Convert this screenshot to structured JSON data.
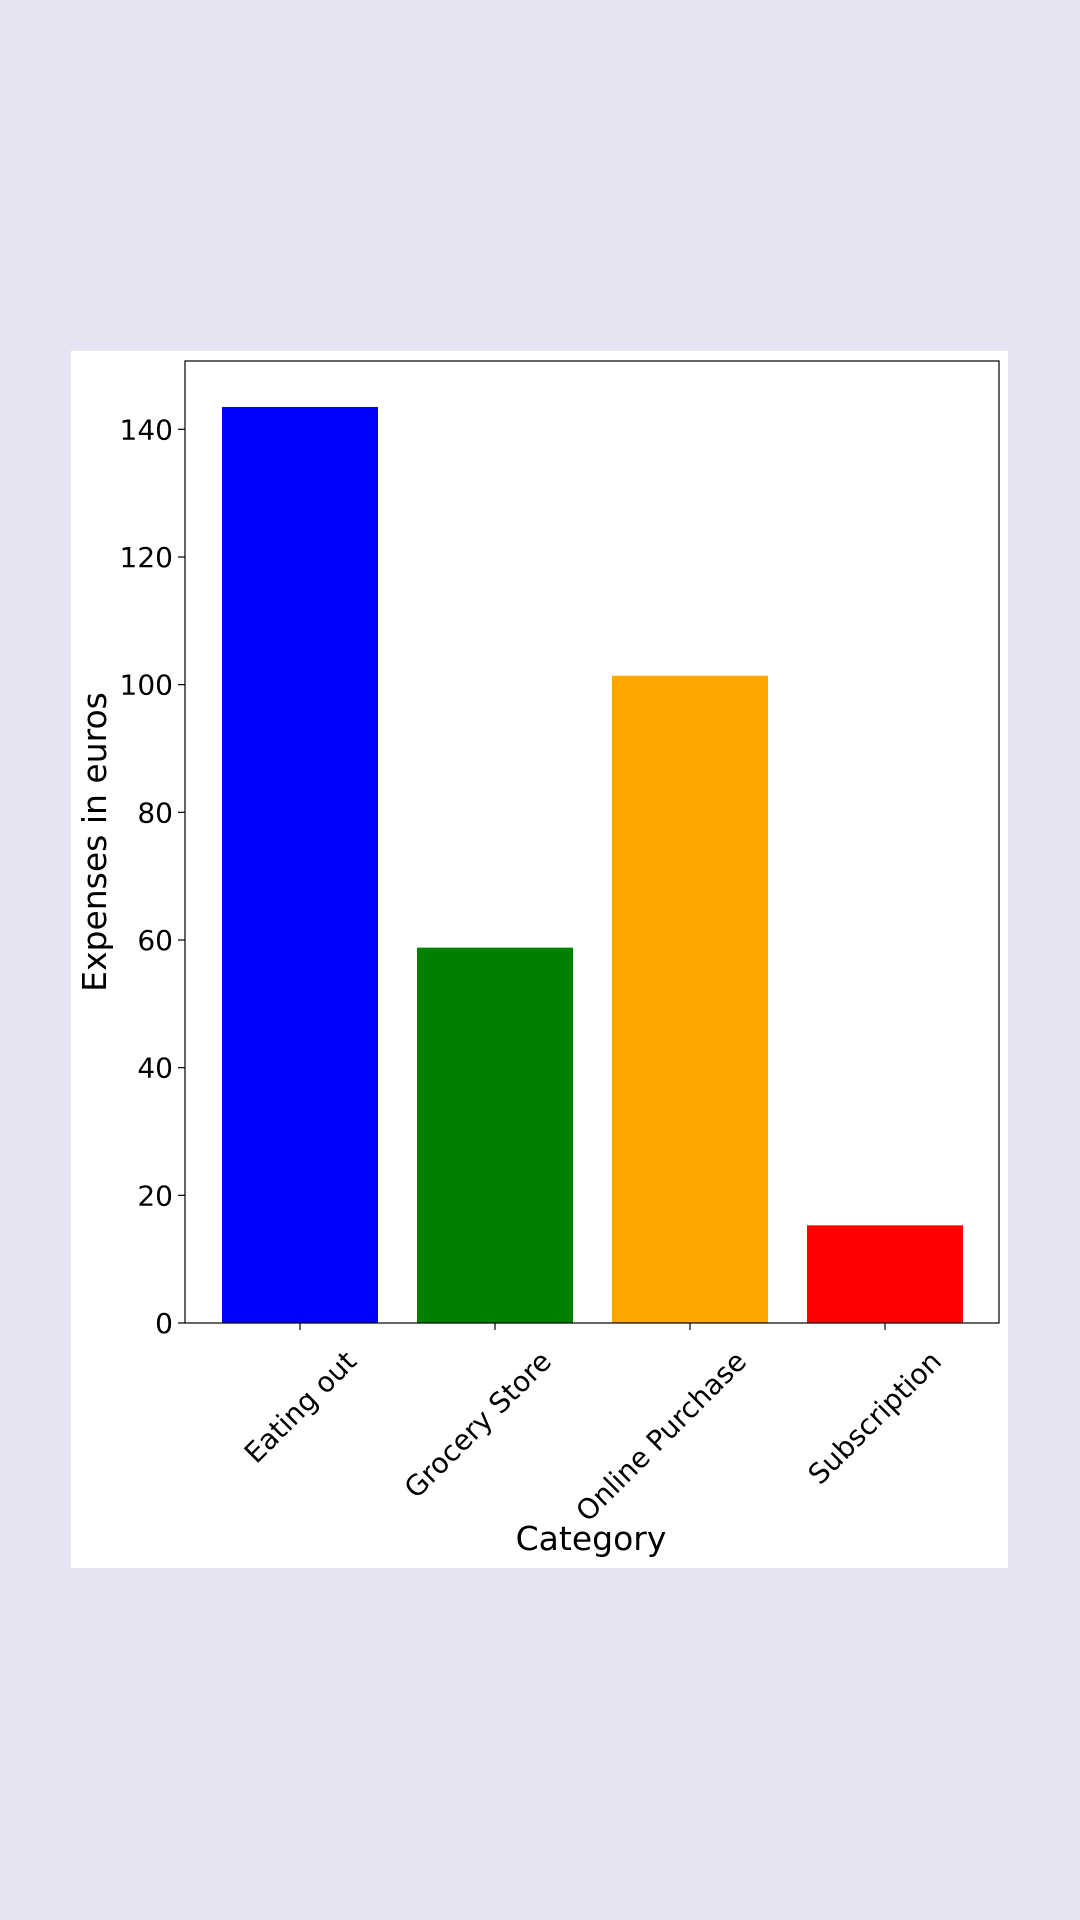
{
  "chart_data": {
    "type": "bar",
    "title": "",
    "xlabel": "Category",
    "ylabel": "Expenses in euros",
    "categories": [
      "Eating out",
      "Grocery Store",
      "Online Purchase",
      "Subscription"
    ],
    "values": [
      143.5,
      58.8,
      101.4,
      15.3
    ],
    "colors": [
      "#0000ff",
      "#008000",
      "#ffa500",
      "#ff0000"
    ],
    "ylim": [
      0,
      150.7
    ],
    "yticks": [
      0,
      20,
      40,
      60,
      80,
      100,
      120,
      140
    ],
    "grid": false,
    "legend": "none"
  }
}
